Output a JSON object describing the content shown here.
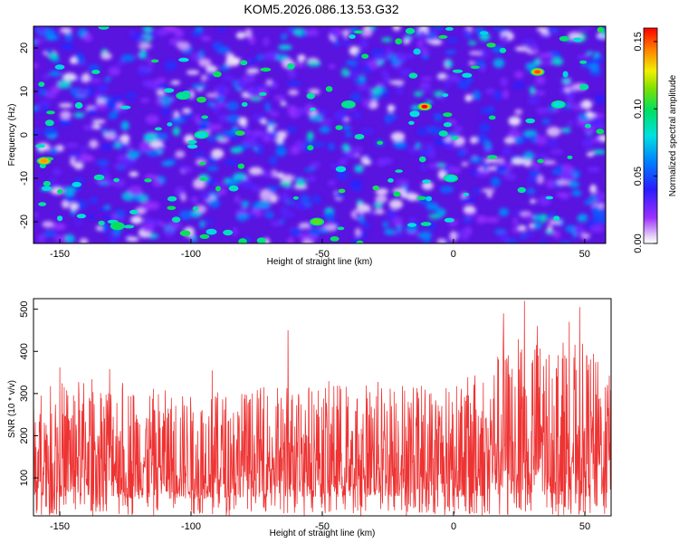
{
  "chart_data": [
    {
      "type": "heatmap",
      "title": "KOM5.2026.086.13.53.G32",
      "xlabel": "Height of straight line (km)",
      "ylabel": "Frequency (Hz)",
      "xlim": [
        -160,
        58
      ],
      "ylim": [
        -25,
        25
      ],
      "x_ticks": [
        -150,
        -100,
        -50,
        0,
        50
      ],
      "y_ticks": [
        -20,
        -10,
        0,
        10,
        20
      ],
      "colorbar": {
        "label": "Normalized spectral amplitude",
        "range": [
          0.0,
          0.16
        ],
        "ticks": [
          "0.00",
          "0.05",
          "0.10",
          "0.15"
        ]
      },
      "hotspots": [
        {
          "x": -11,
          "y": 6.5,
          "value": 0.16
        },
        {
          "x": 32,
          "y": 14.5,
          "value": 0.15
        },
        {
          "x": -156,
          "y": -6,
          "value": 0.14
        },
        {
          "x": -52,
          "y": -20,
          "value": 0.11
        },
        {
          "x": -128,
          "y": -21,
          "value": 0.1
        },
        {
          "x": -103,
          "y": 9,
          "value": 0.09
        },
        {
          "x": -40,
          "y": 7,
          "value": 0.09
        },
        {
          "x": -96,
          "y": 0,
          "value": 0.08
        },
        {
          "x": -1,
          "y": -10,
          "value": 0.08
        },
        {
          "x": 40,
          "y": 7,
          "value": 0.08
        }
      ],
      "series_color": "#ff0000"
    },
    {
      "type": "line",
      "title": "",
      "xlabel": "Height of straight line (km)",
      "ylabel": "SNR (10 * v/v)",
      "xlim": [
        -160,
        60
      ],
      "ylim": [
        10,
        525
      ],
      "x_ticks": [
        -150,
        -100,
        -50,
        0,
        50
      ],
      "y_ticks": [
        100,
        200,
        300,
        400,
        500
      ],
      "color": "#ee3333",
      "profile": [
        {
          "x": -160,
          "low": 60,
          "high": 300
        },
        {
          "x": -150,
          "low": 55,
          "high": 330
        },
        {
          "x": -140,
          "low": 55,
          "high": 340
        },
        {
          "x": -130,
          "low": 55,
          "high": 345
        },
        {
          "x": -120,
          "low": 50,
          "high": 320
        },
        {
          "x": -100,
          "low": 50,
          "high": 300
        },
        {
          "x": -80,
          "low": 55,
          "high": 310
        },
        {
          "x": -60,
          "low": 55,
          "high": 330
        },
        {
          "x": -40,
          "low": 55,
          "high": 330
        },
        {
          "x": -20,
          "low": 55,
          "high": 335
        },
        {
          "x": 0,
          "low": 55,
          "high": 320
        },
        {
          "x": 10,
          "low": 55,
          "high": 360
        },
        {
          "x": 20,
          "low": 60,
          "high": 420
        },
        {
          "x": 30,
          "low": 60,
          "high": 440
        },
        {
          "x": 40,
          "low": 60,
          "high": 430
        },
        {
          "x": 50,
          "low": 55,
          "high": 420
        },
        {
          "x": 60,
          "low": 60,
          "high": 350
        }
      ],
      "peaks": [
        {
          "x": 27,
          "y": 520
        },
        {
          "x": 48,
          "y": 505
        },
        {
          "x": 19,
          "y": 490
        },
        {
          "x": -63,
          "y": 450
        },
        {
          "x": 44,
          "y": 470
        },
        {
          "x": 32,
          "y": 460
        },
        {
          "x": -150,
          "y": 362
        },
        {
          "x": -131,
          "y": 358
        },
        {
          "x": -92,
          "y": 355
        }
      ]
    }
  ]
}
